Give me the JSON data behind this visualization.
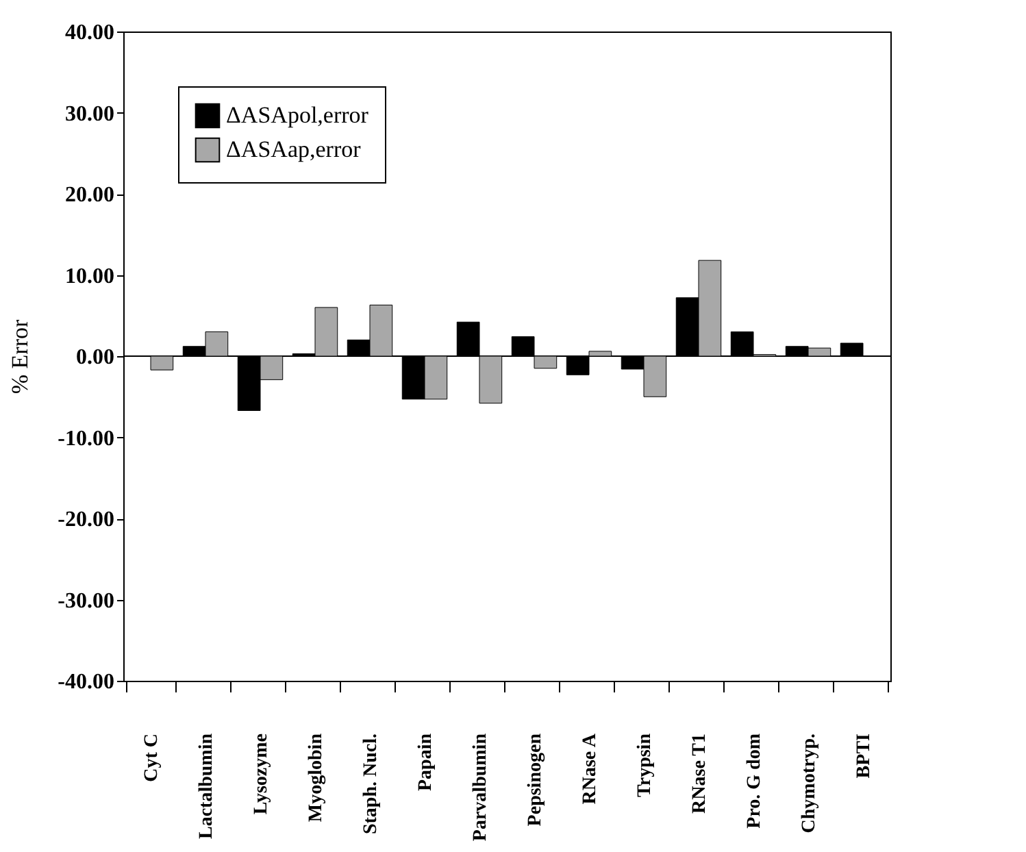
{
  "chart_data": {
    "type": "bar",
    "ylabel": "% Error",
    "categories": [
      "Cyt C",
      "Lactalbumin",
      "Lysozyme",
      "Myoglobin",
      "Staph. Nucl.",
      "Papain",
      "Parvalbumin",
      "Pepsinogen",
      "RNase A",
      "Trypsin",
      "RNase T1",
      "Pro. G dom",
      "Chymotryp.",
      "BPTI"
    ],
    "series": [
      {
        "name": "ΔASApol,error",
        "color": "#000000",
        "values": [
          null,
          1.2,
          -6.7,
          0.3,
          2.0,
          -5.3,
          4.2,
          2.4,
          -2.3,
          -1.6,
          7.2,
          3.0,
          1.2,
          1.6
        ]
      },
      {
        "name": "ΔASAap,error",
        "color": "#a8a8a8",
        "values": [
          -1.7,
          3.0,
          -2.9,
          6.0,
          6.3,
          -5.3,
          -5.8,
          -1.5,
          0.6,
          -5.0,
          11.8,
          0.2,
          1.0,
          null
        ]
      }
    ],
    "ylim": [
      -40,
      40
    ],
    "yticks": [
      {
        "value": -40,
        "label": "-40.00"
      },
      {
        "value": -30,
        "label": "-30.00"
      },
      {
        "value": -20,
        "label": "-20.00"
      },
      {
        "value": -10,
        "label": "-10.00"
      },
      {
        "value": 0,
        "label": "0.00"
      },
      {
        "value": 10,
        "label": "10.00"
      },
      {
        "value": 20,
        "label": "20.00"
      },
      {
        "value": 30,
        "label": "30.00"
      },
      {
        "value": 40,
        "label": "40.00"
      }
    ],
    "ref_lines": [
      {
        "axis": "y",
        "value": 0,
        "color": "#000000"
      }
    ],
    "legend": "top left",
    "grid": false
  }
}
